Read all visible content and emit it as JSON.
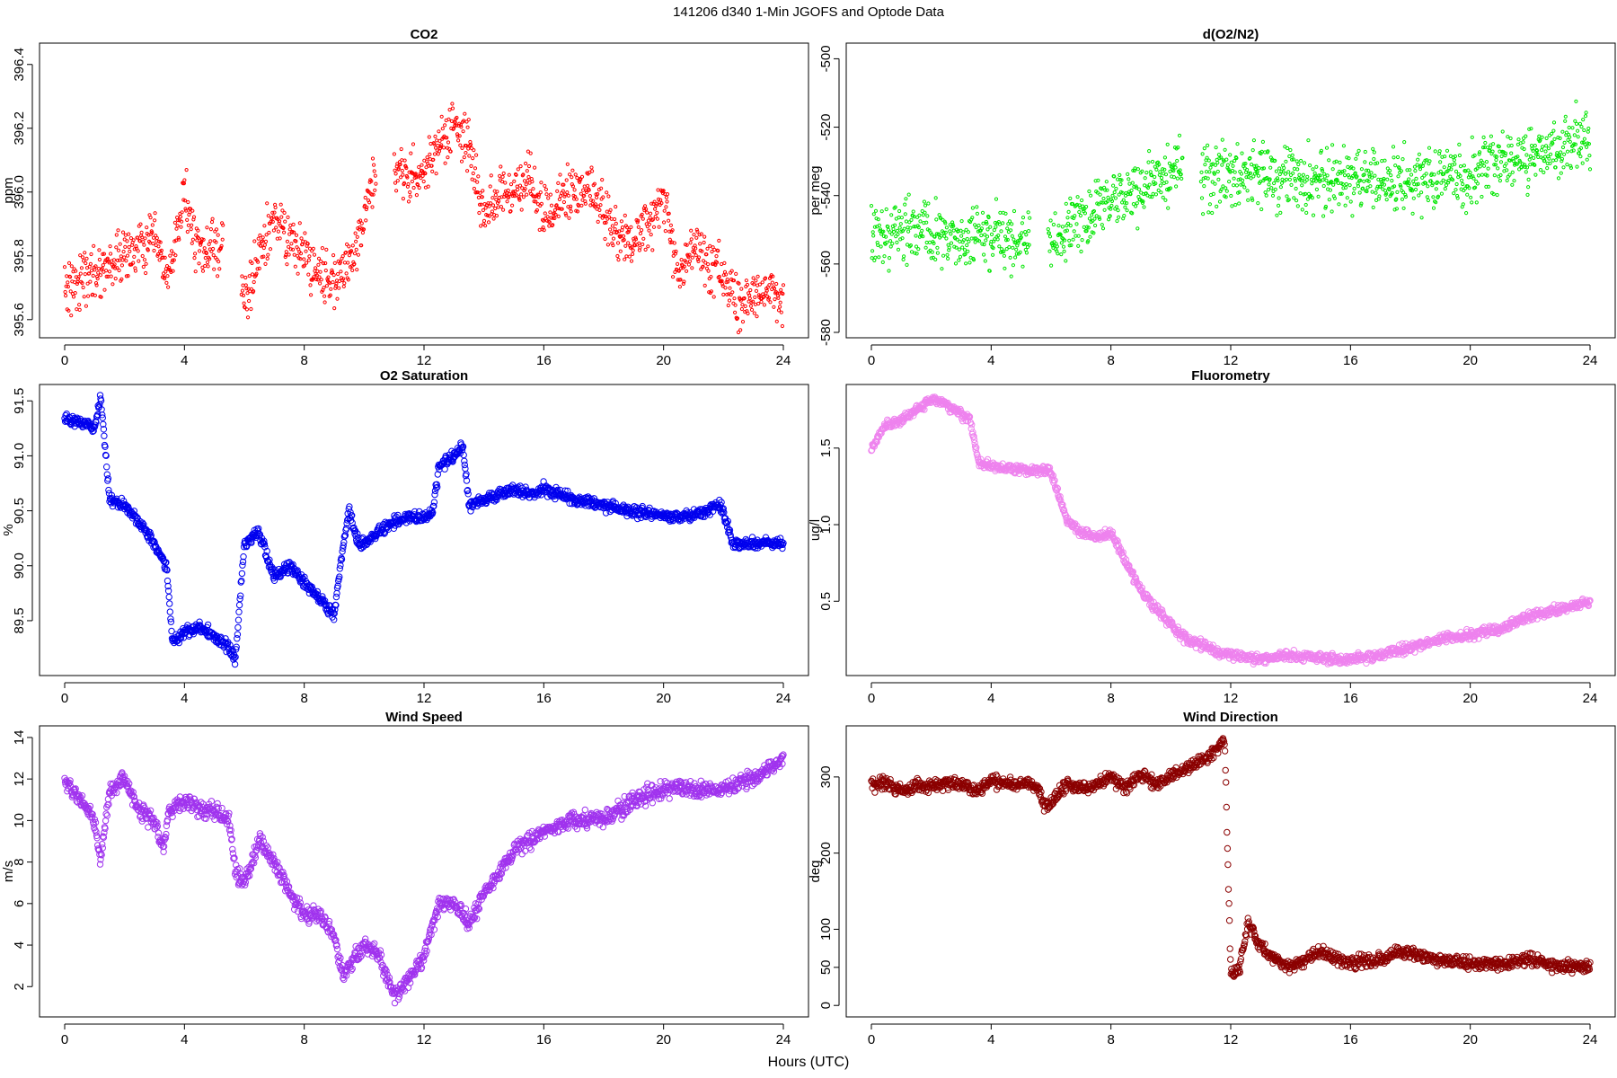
{
  "title": "141206   d340   1-Min  JGOFS and Optode Data",
  "xlabel": "Hours (UTC)",
  "chart_data": [
    {
      "type": "scatter",
      "title": "CO2",
      "ylabel": "ppm",
      "color": "#ff0000",
      "xlim": [
        0,
        24
      ],
      "ylim": [
        395.56,
        396.45
      ],
      "xticks": [
        0,
        4,
        8,
        12,
        16,
        20,
        24
      ],
      "yticks": [
        395.6,
        395.8,
        396.0,
        396.2,
        396.4
      ],
      "yticklabels": [
        "395.6",
        "395.8",
        "396.0",
        "396.2",
        "396.4"
      ],
      "gaps": [
        [
          5.3,
          5.9
        ],
        [
          10.4,
          11.0
        ]
      ],
      "x": [
        0,
        1,
        2,
        3,
        3.5,
        4,
        4.5,
        5,
        5.3,
        6,
        6.5,
        7,
        7.5,
        8,
        8.5,
        9,
        9.5,
        10,
        10.3,
        11,
        11.5,
        12,
        12.5,
        13,
        13.5,
        14,
        14.5,
        15,
        15.5,
        16,
        16.5,
        17,
        17.5,
        18,
        18.5,
        19,
        19.5,
        20,
        20.5,
        21,
        21.5,
        22,
        22.5,
        23,
        23.5,
        24
      ],
      "y": [
        395.7,
        395.75,
        395.8,
        395.85,
        395.72,
        396.0,
        395.8,
        395.82,
        395.85,
        395.65,
        395.8,
        395.92,
        395.85,
        395.8,
        395.75,
        395.72,
        395.78,
        395.9,
        396.05,
        396.1,
        396.05,
        396.05,
        396.15,
        396.2,
        396.15,
        395.92,
        396.0,
        396.0,
        396.05,
        395.92,
        395.95,
        396.02,
        396.0,
        395.95,
        395.85,
        395.85,
        395.9,
        396.0,
        395.72,
        395.85,
        395.75,
        395.75,
        395.65,
        395.68,
        395.7,
        395.65
      ],
      "spread": 0.08
    },
    {
      "type": "scatter",
      "title": "d(O2/N2)",
      "ylabel": "per meg",
      "color": "#00e600",
      "xlim": [
        0,
        24
      ],
      "ylim": [
        -580,
        -497
      ],
      "xticks": [
        0,
        4,
        8,
        12,
        16,
        20,
        24
      ],
      "yticks": [
        -580,
        -560,
        -540,
        -520,
        -500
      ],
      "yticklabels": [
        "-580",
        "-560",
        "-540",
        "-520",
        "-500"
      ],
      "gaps": [
        [
          5.3,
          5.9
        ],
        [
          10.4,
          11.0
        ]
      ],
      "x": [
        0,
        1,
        2,
        3,
        4,
        5,
        5.3,
        6,
        7,
        8,
        9,
        10,
        10.3,
        11,
        12,
        13,
        14,
        15,
        16,
        17,
        18,
        19,
        20,
        21,
        22,
        23,
        24
      ],
      "y": [
        -552,
        -550,
        -552,
        -553,
        -553,
        -554,
        -554,
        -552,
        -548,
        -542,
        -538,
        -533,
        -532,
        -535,
        -534,
        -534,
        -536,
        -535,
        -535,
        -536,
        -535,
        -535,
        -535,
        -530,
        -528,
        -526,
        -524
      ],
      "spread": 9
    },
    {
      "type": "scatter",
      "title": "O2 Saturation",
      "ylabel": "%",
      "color": "#0000ee",
      "xlim": [
        0,
        24
      ],
      "ylim": [
        89.05,
        91.6
      ],
      "xticks": [
        0,
        4,
        8,
        12,
        16,
        20,
        24
      ],
      "yticks": [
        89.5,
        90.0,
        90.5,
        91.0,
        91.5
      ],
      "yticklabels": [
        "89.5",
        "90.0",
        "90.5",
        "91.0",
        "91.5"
      ],
      "gaps": [],
      "x": [
        0,
        0.5,
        1.0,
        1.2,
        1.5,
        2,
        2.5,
        3,
        3.4,
        3.6,
        4,
        4.5,
        5,
        5.5,
        5.7,
        6,
        6.5,
        7,
        7.5,
        8,
        8.5,
        9,
        9.2,
        9.5,
        9.8,
        10,
        10.5,
        11,
        11.5,
        12,
        12.3,
        12.5,
        13,
        13.3,
        13.5,
        14,
        14.5,
        15,
        15.5,
        16,
        17,
        18,
        19,
        20,
        21,
        21.8,
        22,
        22.3,
        23,
        24
      ],
      "y": [
        91.35,
        91.3,
        91.25,
        91.55,
        90.6,
        90.55,
        90.4,
        90.2,
        90.0,
        89.3,
        89.4,
        89.45,
        89.35,
        89.25,
        89.15,
        90.2,
        90.3,
        89.9,
        90.0,
        89.85,
        89.7,
        89.55,
        90.0,
        90.5,
        90.2,
        90.2,
        90.3,
        90.4,
        90.45,
        90.45,
        90.5,
        90.9,
        91.0,
        91.1,
        90.55,
        90.6,
        90.65,
        90.7,
        90.65,
        90.7,
        90.6,
        90.55,
        90.5,
        90.45,
        90.45,
        90.55,
        90.5,
        90.2,
        90.2,
        90.2
      ],
      "spread": 0.05
    },
    {
      "type": "scatter",
      "title": "Fluorometry",
      "ylabel": "ug/l",
      "color": "#ee82ee",
      "xlim": [
        0,
        24
      ],
      "ylim": [
        0.05,
        1.88
      ],
      "xticks": [
        0,
        4,
        8,
        12,
        16,
        20,
        24
      ],
      "yticks": [
        0.5,
        1.0,
        1.5
      ],
      "yticklabels": [
        "0.5",
        "1.0",
        "1.5"
      ],
      "gaps": [],
      "x": [
        0,
        0.5,
        1,
        1.5,
        2,
        2.5,
        3,
        3.3,
        3.6,
        4,
        5,
        6,
        6.5,
        7,
        7.5,
        8,
        8.5,
        9,
        9.5,
        10,
        10.5,
        11,
        11.5,
        12,
        13,
        14,
        15,
        16,
        17,
        18,
        19,
        20,
        21,
        22,
        23,
        24
      ],
      "y": [
        1.5,
        1.65,
        1.68,
        1.75,
        1.82,
        1.78,
        1.72,
        1.68,
        1.4,
        1.38,
        1.36,
        1.35,
        1.05,
        0.95,
        0.92,
        0.95,
        0.75,
        0.58,
        0.45,
        0.35,
        0.25,
        0.22,
        0.18,
        0.15,
        0.12,
        0.15,
        0.13,
        0.12,
        0.15,
        0.2,
        0.25,
        0.28,
        0.32,
        0.4,
        0.45,
        0.5
      ],
      "spread": 0.03
    },
    {
      "type": "scatter",
      "title": "Wind Speed",
      "ylabel": "m/s",
      "color": "#a033ee",
      "xlim": [
        0,
        24
      ],
      "ylim": [
        0.8,
        14.3
      ],
      "xticks": [
        0,
        4,
        8,
        12,
        16,
        20,
        24
      ],
      "yticks": [
        2,
        4,
        6,
        8,
        10,
        12,
        14
      ],
      "yticklabels": [
        "2",
        "4",
        "6",
        "8",
        "10",
        "12",
        "14"
      ],
      "gaps": [],
      "x": [
        0,
        0.5,
        1,
        1.2,
        1.5,
        2,
        2.5,
        3,
        3.3,
        3.5,
        4,
        4.5,
        5,
        5.5,
        5.7,
        6,
        6.5,
        7,
        7.5,
        8,
        8.5,
        9,
        9.3,
        9.7,
        10,
        10.5,
        11,
        11.3,
        11.6,
        12,
        12.5,
        13,
        13.5,
        14,
        14.5,
        15,
        16,
        17,
        18,
        19,
        20,
        21,
        22,
        23,
        24
      ],
      "y": [
        12,
        11,
        10,
        8,
        11.5,
        12,
        10.5,
        10,
        8.5,
        10.5,
        11,
        10.5,
        10.5,
        10,
        7.5,
        7,
        9,
        8,
        6.5,
        5.5,
        5.5,
        4.5,
        2.5,
        3.5,
        4,
        3.5,
        1.5,
        2,
        2.5,
        3.5,
        6,
        6,
        5,
        6.5,
        7.5,
        8.5,
        9.5,
        10,
        10,
        11,
        11.5,
        11.5,
        11.5,
        12,
        13
      ],
      "spread": 0.4
    },
    {
      "type": "scatter",
      "title": "Wind Direction",
      "ylabel": "deg",
      "color": "#8b0000",
      "xlim": [
        0,
        24
      ],
      "ylim": [
        -8,
        360
      ],
      "xticks": [
        0,
        4,
        8,
        12,
        16,
        20,
        24
      ],
      "yticks": [
        0,
        50,
        100,
        200,
        300
      ],
      "yticklabels": [
        "0",
        "50",
        "100",
        "200",
        "300"
      ],
      "gaps": [],
      "x": [
        0,
        0.5,
        1,
        1.5,
        2,
        2.5,
        3,
        3.5,
        4,
        4.5,
        5,
        5.5,
        5.8,
        6,
        6.5,
        7,
        7.5,
        8,
        8.5,
        9,
        9.5,
        10,
        10.5,
        11,
        11.5,
        11.8,
        12,
        12.3,
        12.6,
        13,
        13.5,
        14,
        14.5,
        15,
        15.5,
        16,
        16.5,
        17,
        17.5,
        18,
        19,
        20,
        21,
        22,
        23,
        24
      ],
      "y": [
        290,
        292,
        280,
        290,
        288,
        292,
        290,
        280,
        295,
        292,
        292,
        290,
        260,
        265,
        290,
        285,
        290,
        300,
        285,
        305,
        290,
        300,
        310,
        320,
        335,
        350,
        40,
        50,
        110,
        75,
        60,
        50,
        60,
        70,
        60,
        55,
        60,
        60,
        70,
        70,
        60,
        55,
        55,
        60,
        50,
        50
      ],
      "spread": 8
    }
  ]
}
